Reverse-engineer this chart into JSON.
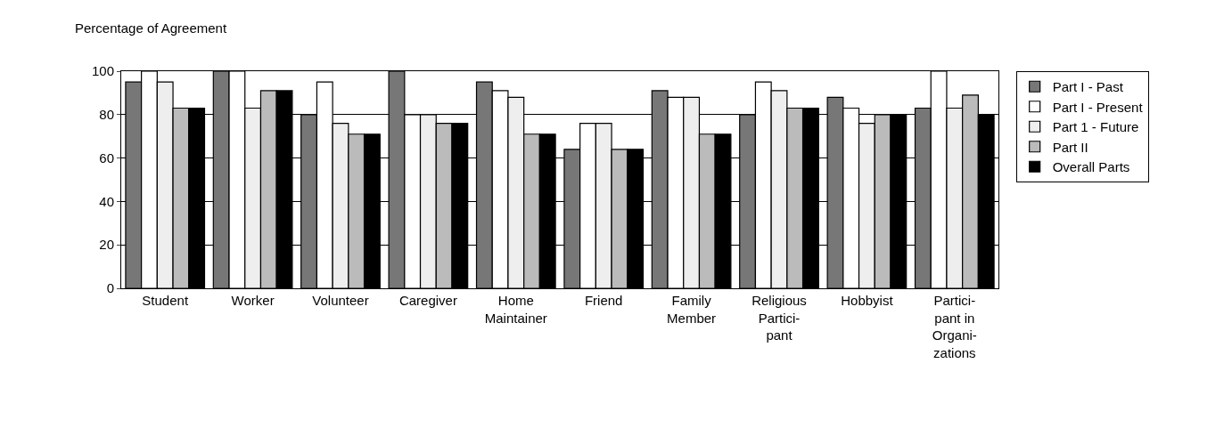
{
  "chart_data": {
    "type": "bar",
    "ylabel": "Percentage of Agreement",
    "categories": [
      "Student",
      "Worker",
      "Volunteer",
      "Caregiver",
      "Home\nMaintainer",
      "Friend",
      "Family\nMember",
      "Religious\nPartici-\npant",
      "Hobbyist",
      "Partici-\npant in\nOrgani-\nzations"
    ],
    "series": [
      {
        "name": "Part I - Past",
        "color": "#777777",
        "values": [
          95,
          100,
          80,
          100,
          95,
          64,
          91,
          80,
          88,
          83
        ]
      },
      {
        "name": "Part I - Present",
        "color": "#ffffff",
        "values": [
          100,
          100,
          95,
          80,
          91,
          76,
          88,
          95,
          83,
          100
        ]
      },
      {
        "name": "Part 1 - Future",
        "color": "#eeeeee",
        "values": [
          95,
          83,
          76,
          80,
          88,
          76,
          88,
          91,
          76,
          83
        ]
      },
      {
        "name": "Part II",
        "color": "#bbbbbb",
        "values": [
          83,
          91,
          71,
          76,
          71,
          64,
          71,
          83,
          80,
          89
        ]
      },
      {
        "name": "Overall Parts",
        "color": "#000000",
        "values": [
          83,
          91,
          71,
          76,
          71,
          64,
          71,
          83,
          80,
          80
        ]
      }
    ],
    "ylim": [
      0,
      100
    ],
    "yticks": [
      0,
      20,
      40,
      60,
      80,
      100
    ],
    "grid": "y",
    "legend": "right"
  }
}
